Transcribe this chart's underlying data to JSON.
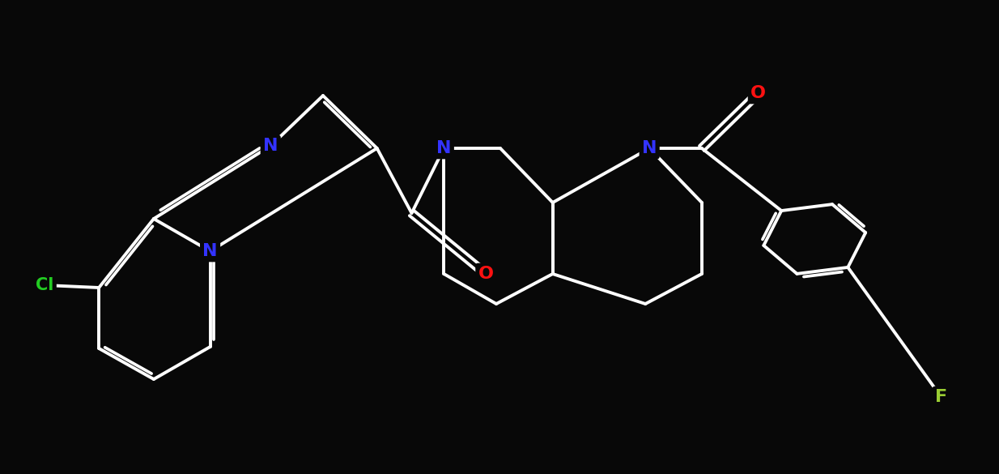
{
  "bg_color": "#080808",
  "bond_color": "#ffffff",
  "N_color": "#3333ff",
  "O_color": "#ff1111",
  "Cl_color": "#22cc22",
  "F_color": "#99cc33",
  "lw": 2.8,
  "doff": 0.08,
  "figsize": [
    12.34,
    5.85
  ],
  "dpi": 100,
  "fontsize": 16,
  "xlim": [
    0,
    21
  ],
  "ylim": [
    0,
    10
  ]
}
